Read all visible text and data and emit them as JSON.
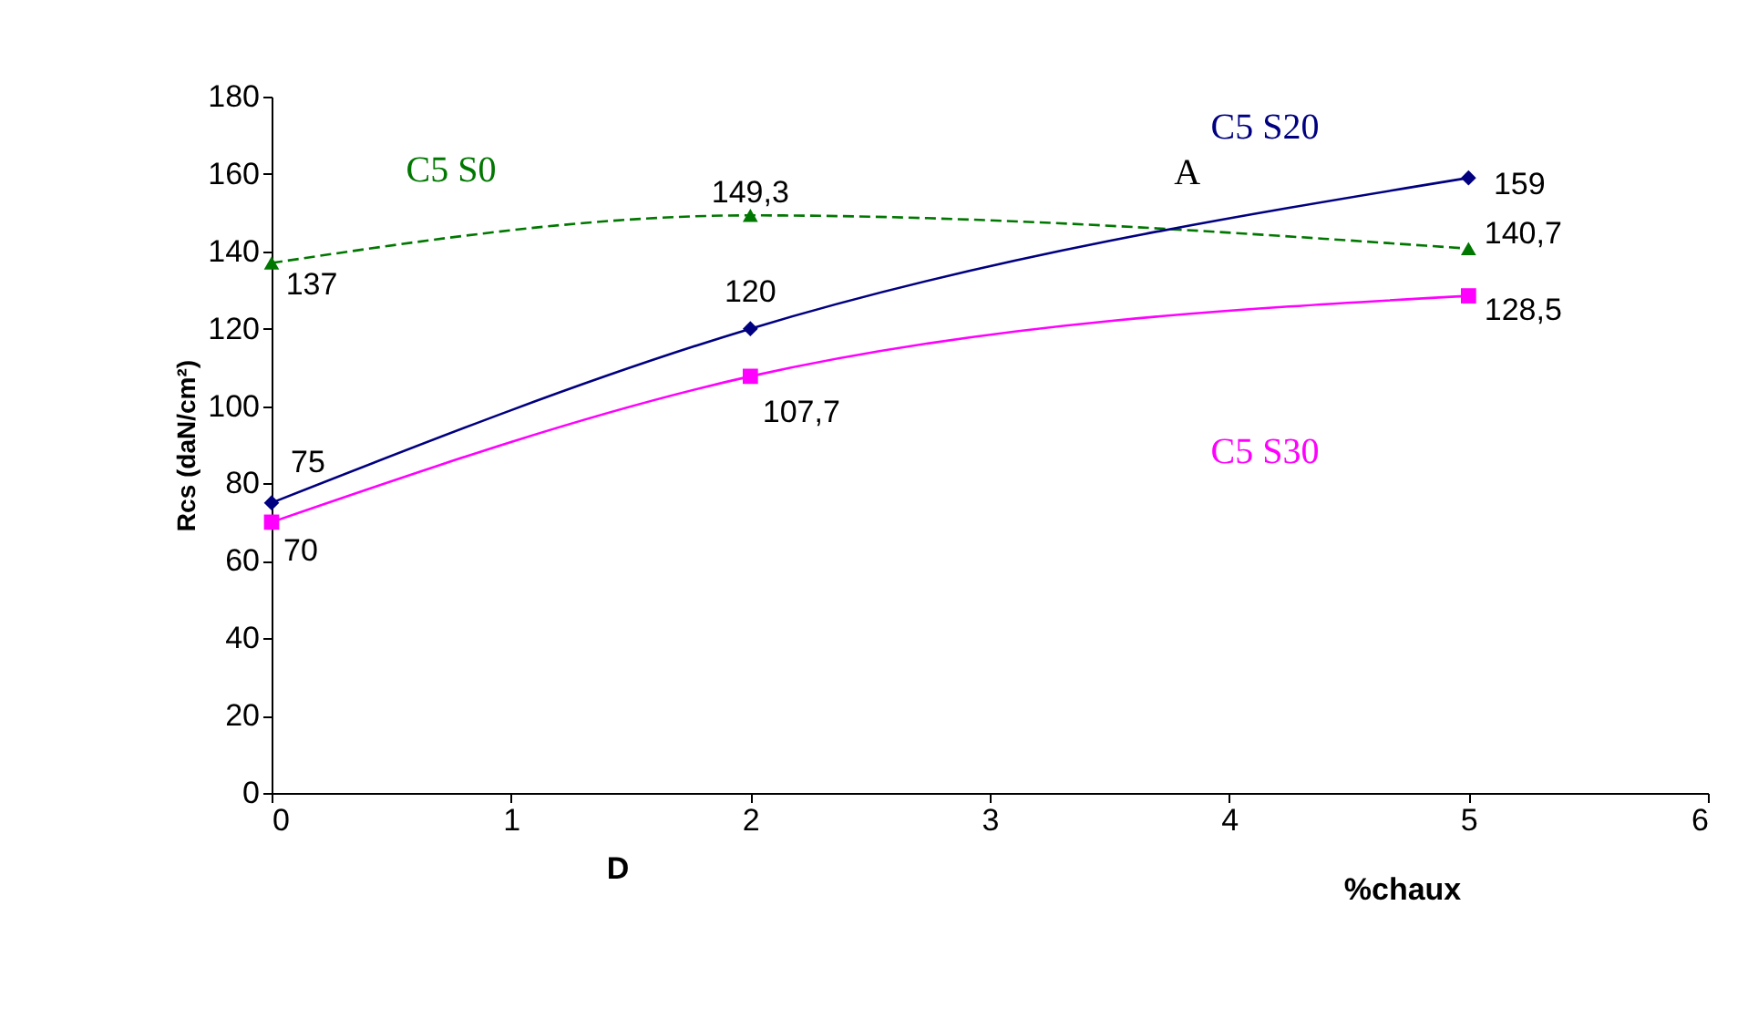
{
  "chart_data": {
    "type": "line",
    "xlabel": "%chaux",
    "ylabel": "Rcs (daN/cm²)",
    "x": [
      0,
      2,
      5
    ],
    "series": [
      {
        "name": "C5 S0",
        "color": "#007700",
        "line_style": "dashed",
        "marker": "triangle",
        "values": [
          137,
          149.3,
          140.7
        ],
        "value_labels": [
          "137",
          "149,3",
          "140,7"
        ]
      },
      {
        "name": "C5 S20",
        "color": "#000080",
        "line_style": "solid",
        "marker": "diamond",
        "values": [
          75,
          120,
          159
        ],
        "value_labels": [
          "75",
          "120",
          "159"
        ]
      },
      {
        "name": "C5 S30",
        "color": "#ff00ff",
        "line_style": "solid",
        "marker": "square",
        "values": [
          70,
          107.7,
          128.5
        ],
        "value_labels": [
          "70",
          "107,7",
          "128,5"
        ]
      }
    ],
    "annotations": [
      "D",
      "A"
    ],
    "xlim": [
      0,
      6
    ],
    "xticks": [
      0,
      1,
      2,
      3,
      4,
      5,
      6
    ],
    "ylim": [
      0,
      180
    ],
    "yticks": [
      0,
      20,
      40,
      60,
      80,
      100,
      120,
      140,
      160,
      180
    ],
    "grid": false
  }
}
